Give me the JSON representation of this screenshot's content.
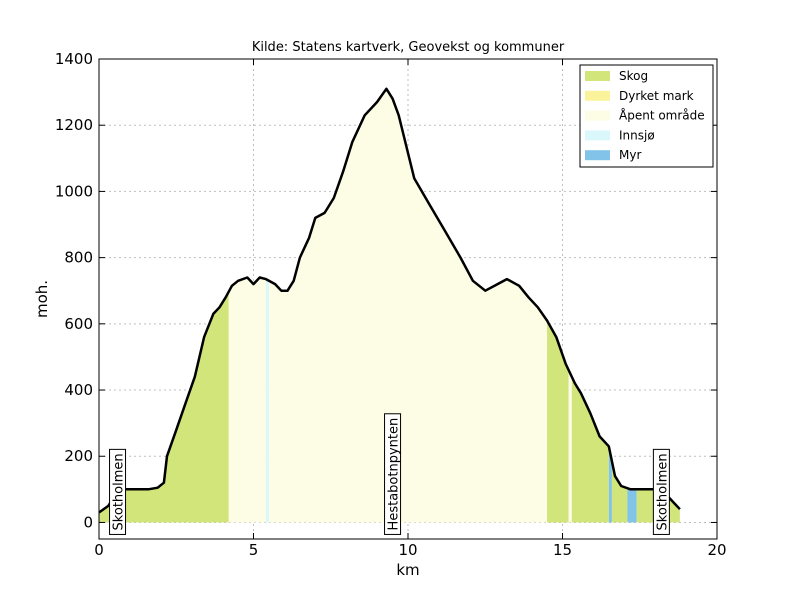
{
  "chart_data": {
    "type": "area",
    "title": "Kilde: Statens kartverk, Geovekst og kommuner",
    "xlabel": "km",
    "ylabel": "moh.",
    "xlim": [
      0,
      20
    ],
    "ylim": [
      -50,
      1400
    ],
    "x_ticks": [
      0,
      5,
      10,
      15,
      20
    ],
    "y_ticks": [
      0,
      200,
      400,
      600,
      800,
      1000,
      1200,
      1400
    ],
    "grid": true,
    "legend_position": "top-right",
    "legend": [
      {
        "name": "Skog",
        "color": "#d2e57b"
      },
      {
        "name": "Dyrket mark",
        "color": "#faf39c"
      },
      {
        "name": "Åpent område",
        "color": "#fdfde6"
      },
      {
        "name": "Innsjø",
        "color": "#daf8fb"
      },
      {
        "name": "Myr",
        "color": "#82c3ea"
      }
    ],
    "profile_color": "#000000",
    "profile": {
      "x": [
        0,
        0.3,
        0.5,
        0.8,
        1.0,
        1.3,
        1.6,
        1.9,
        2.1,
        2.2,
        2.5,
        2.8,
        3.1,
        3.4,
        3.7,
        3.9,
        4.1,
        4.3,
        4.5,
        4.8,
        5.0,
        5.2,
        5.4,
        5.7,
        5.9,
        6.1,
        6.3,
        6.5,
        6.8,
        7.0,
        7.3,
        7.6,
        7.9,
        8.2,
        8.6,
        9.0,
        9.3,
        9.5,
        9.7,
        10.2,
        10.7,
        11.2,
        11.7,
        12.1,
        12.5,
        12.9,
        13.2,
        13.6,
        13.9,
        14.2,
        14.5,
        14.8,
        15.1,
        15.4,
        15.6,
        15.9,
        16.2,
        16.5,
        16.7,
        16.9,
        17.2,
        17.6,
        18.0,
        18.3,
        18.6,
        18.8
      ],
      "y": [
        30,
        50,
        80,
        100,
        100,
        100,
        100,
        105,
        120,
        200,
        280,
        360,
        440,
        560,
        630,
        650,
        680,
        715,
        730,
        740,
        720,
        740,
        735,
        720,
        700,
        700,
        730,
        800,
        860,
        920,
        935,
        980,
        1060,
        1150,
        1230,
        1270,
        1310,
        1280,
        1230,
        1040,
        960,
        880,
        800,
        730,
        700,
        720,
        735,
        715,
        680,
        650,
        610,
        560,
        480,
        420,
        390,
        330,
        260,
        230,
        140,
        110,
        100,
        100,
        100,
        90,
        60,
        40
      ]
    },
    "landcover": [
      {
        "type": "Skog",
        "from": 0,
        "to": 4.2
      },
      {
        "type": "Åpent område",
        "from": 4.2,
        "to": 5.4
      },
      {
        "type": "Innsjø",
        "from": 5.4,
        "to": 5.5
      },
      {
        "type": "Åpent område",
        "from": 5.5,
        "to": 14.5
      },
      {
        "type": "Skog",
        "from": 14.5,
        "to": 15.2
      },
      {
        "type": "Åpent område",
        "from": 15.2,
        "to": 15.3
      },
      {
        "type": "Skog",
        "from": 15.3,
        "to": 16.5
      },
      {
        "type": "Myr",
        "from": 16.5,
        "to": 16.6
      },
      {
        "type": "Skog",
        "from": 16.6,
        "to": 17.1
      },
      {
        "type": "Myr",
        "from": 17.1,
        "to": 17.4
      },
      {
        "type": "Skog",
        "from": 17.4,
        "to": 18.8
      }
    ],
    "annotations": [
      {
        "text": "Skotholmen",
        "x": 0.6
      },
      {
        "text": "Hestabotnpynten",
        "x": 9.5
      },
      {
        "text": "Skotholmen",
        "x": 18.2
      }
    ]
  }
}
